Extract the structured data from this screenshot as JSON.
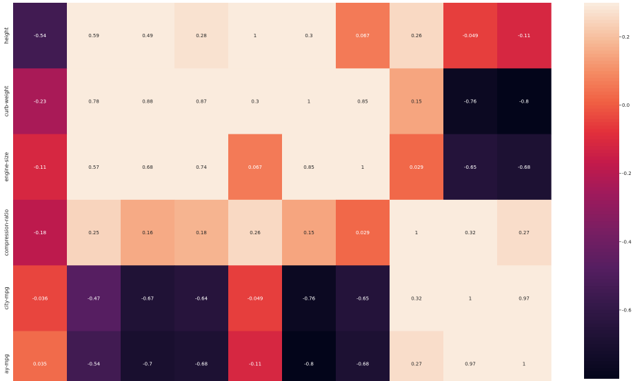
{
  "chart_data": {
    "type": "heatmap",
    "title": "",
    "xlabel": "",
    "ylabel": "",
    "rows": [
      "height",
      "curb-weight",
      "engine-size",
      "compression-ratio",
      "city-mpg",
      "highway-mpg"
    ],
    "row_display": [
      "height",
      "curb-weight",
      "engine-size",
      "compression-ratio",
      "city-mpg",
      "ay-mpg"
    ],
    "n_cols": 10,
    "values": [
      [
        -0.54,
        0.59,
        0.49,
        0.28,
        1,
        0.3,
        0.067,
        0.26,
        -0.049,
        -0.11
      ],
      [
        -0.23,
        0.78,
        0.88,
        0.87,
        0.3,
        1,
        0.85,
        0.15,
        -0.76,
        -0.8
      ],
      [
        -0.11,
        0.57,
        0.68,
        0.74,
        0.067,
        0.85,
        1,
        0.029,
        -0.65,
        -0.68
      ],
      [
        -0.18,
        0.25,
        0.16,
        0.18,
        0.26,
        0.15,
        0.029,
        1,
        0.32,
        0.27
      ],
      [
        -0.036,
        -0.47,
        -0.67,
        -0.64,
        -0.049,
        -0.76,
        -0.65,
        0.32,
        1,
        0.97
      ],
      [
        0.035,
        -0.54,
        -0.7,
        -0.68,
        -0.11,
        -0.8,
        -0.68,
        0.27,
        0.97,
        1
      ]
    ],
    "labels": [
      [
        "-0.54",
        "0.59",
        "0.49",
        "0.28",
        "1",
        "0.3",
        "0.067",
        "0.26",
        "-0.049",
        "-0.11"
      ],
      [
        "-0.23",
        "0.78",
        "0.88",
        "0.87",
        "0.3",
        "1",
        "0.85",
        "0.15",
        "-0.76",
        "-0.8"
      ],
      [
        "-0.11",
        "0.57",
        "0.68",
        "0.74",
        "0.067",
        "0.85",
        "1",
        "0.029",
        "-0.65",
        "-0.68"
      ],
      [
        "-0.18",
        "0.25",
        "0.16",
        "0.18",
        "0.26",
        "0.15",
        "0.029",
        "1",
        "0.32",
        "0.27"
      ],
      [
        "-0.036",
        "-0.47",
        "-0.67",
        "-0.64",
        "-0.049",
        "-0.76",
        "-0.65",
        "0.32",
        "1",
        "0.97"
      ],
      [
        "0.035",
        "-0.54",
        "-0.7",
        "-0.68",
        "-0.11",
        "-0.8",
        "-0.68",
        "0.27",
        "0.97",
        "1"
      ]
    ],
    "colormap": "rocket",
    "colorbar": {
      "range": [
        -0.8,
        0.3
      ],
      "ticks": [
        0.2,
        0.0,
        -0.2,
        -0.4,
        -0.6
      ],
      "tick_labels": [
        "0.2",
        "0.0",
        "-0.2",
        "-0.4",
        "-0.6"
      ]
    }
  }
}
